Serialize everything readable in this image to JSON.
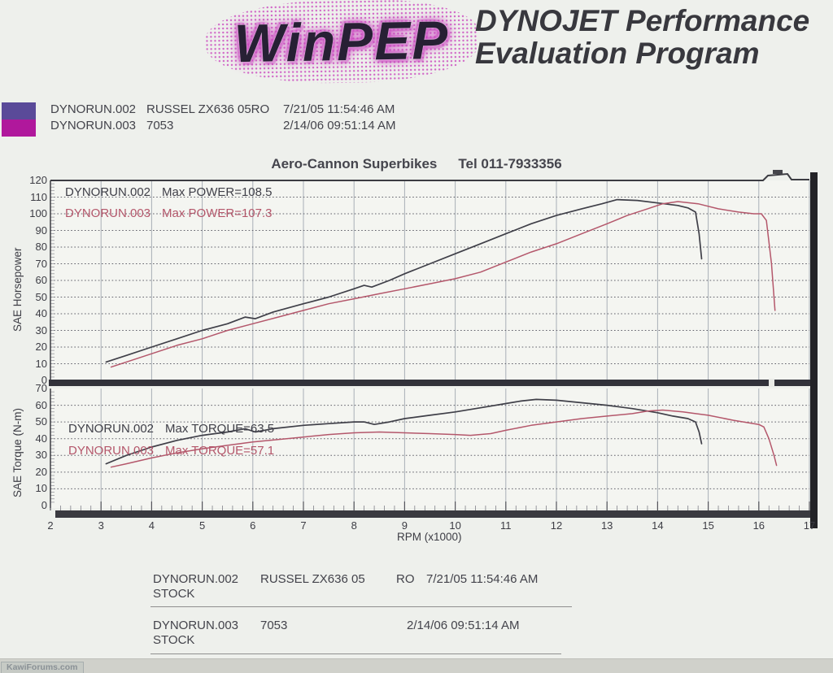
{
  "header": {
    "logo_text": "WinPEP",
    "product_line1": "DYNOJET Performance",
    "product_line2": "Evaluation Program"
  },
  "legend": {
    "runs": [
      {
        "file": "DYNORUN.002",
        "label": "RUSSEL ZX636 05RO",
        "datetime": "7/21/05 11:54:46 AM",
        "color": "#5a4a99"
      },
      {
        "file": "DYNORUN.003",
        "label": "7053",
        "datetime": "2/14/06 09:51:14 AM",
        "color": "#b0189c"
      }
    ]
  },
  "title": {
    "shop": "Aero-Cannon Superbikes",
    "tel": "Tel 011-7933356"
  },
  "chart_data": [
    {
      "type": "line",
      "title": "Aero-Cannon Superbikes  Tel 011-7933356",
      "ylabel": "SAE Horsepower",
      "xlabel": "RPM (x1000)",
      "xlim": [
        2,
        17
      ],
      "ylim": [
        0,
        120
      ],
      "xticks": [
        2,
        3,
        4,
        5,
        6,
        7,
        8,
        9,
        10,
        11,
        12,
        13,
        14,
        15,
        16,
        17
      ],
      "yticks": [
        0,
        10,
        20,
        30,
        40,
        50,
        60,
        70,
        80,
        90,
        100,
        110,
        120
      ],
      "grid": true,
      "legend_position": "none",
      "annotations": [
        {
          "run": "DYNORUN.002",
          "label": "Max POWER=108.5"
        },
        {
          "run": "DYNORUN.003",
          "label": "Max POWER=107.3"
        }
      ],
      "series": [
        {
          "name": "DYNORUN.002",
          "color": "#3f3f48",
          "max_power": 108.5,
          "points": [
            [
              3.1,
              11
            ],
            [
              3.5,
              15
            ],
            [
              4,
              20
            ],
            [
              4.5,
              25
            ],
            [
              5,
              30
            ],
            [
              5.5,
              34
            ],
            [
              5.85,
              38
            ],
            [
              6.05,
              37
            ],
            [
              6.4,
              41
            ],
            [
              7,
              46
            ],
            [
              7.5,
              50
            ],
            [
              8,
              55
            ],
            [
              8.2,
              57
            ],
            [
              8.35,
              56
            ],
            [
              8.7,
              60
            ],
            [
              9,
              64
            ],
            [
              9.5,
              70
            ],
            [
              10,
              76
            ],
            [
              10.5,
              82
            ],
            [
              11,
              88
            ],
            [
              11.5,
              94
            ],
            [
              12,
              99
            ],
            [
              12.5,
              103
            ],
            [
              12.9,
              106
            ],
            [
              13.2,
              108.5
            ],
            [
              13.6,
              108
            ],
            [
              14,
              106.5
            ],
            [
              14.4,
              105
            ],
            [
              14.6,
              103.5
            ],
            [
              14.75,
              101
            ],
            [
              14.82,
              88
            ],
            [
              14.87,
              73
            ]
          ]
        },
        {
          "name": "DYNORUN.003",
          "color": "#b4576b",
          "max_power": 107.3,
          "points": [
            [
              3.2,
              8
            ],
            [
              3.5,
              11
            ],
            [
              4,
              16
            ],
            [
              4.5,
              21
            ],
            [
              5,
              25
            ],
            [
              5.5,
              30
            ],
            [
              6,
              34
            ],
            [
              6.5,
              38
            ],
            [
              7,
              42
            ],
            [
              7.5,
              46
            ],
            [
              8,
              49
            ],
            [
              8.5,
              52
            ],
            [
              9,
              55
            ],
            [
              9.5,
              58
            ],
            [
              10,
              61
            ],
            [
              10.5,
              65
            ],
            [
              11,
              71
            ],
            [
              11.5,
              77
            ],
            [
              12,
              82
            ],
            [
              12.5,
              88
            ],
            [
              13,
              94
            ],
            [
              13.4,
              99
            ],
            [
              13.8,
              103
            ],
            [
              14.1,
              106
            ],
            [
              14.4,
              107.3
            ],
            [
              14.8,
              106
            ],
            [
              15.2,
              103
            ],
            [
              15.6,
              101
            ],
            [
              15.9,
              100
            ],
            [
              16.05,
              100
            ],
            [
              16.15,
              96
            ],
            [
              16.25,
              70
            ],
            [
              16.32,
              42
            ]
          ]
        }
      ]
    },
    {
      "type": "line",
      "ylabel": "SAE Torque (N-m)",
      "xlabel": "RPM (x1000)",
      "xlim": [
        2,
        17
      ],
      "ylim": [
        0,
        70
      ],
      "xticks": [
        2,
        3,
        4,
        5,
        6,
        7,
        8,
        9,
        10,
        11,
        12,
        13,
        14,
        15,
        16,
        17
      ],
      "yticks": [
        0,
        10,
        20,
        30,
        40,
        50,
        60,
        70
      ],
      "grid": true,
      "legend_position": "none",
      "annotations": [
        {
          "run": "DYNORUN.002",
          "label": "Max TORQUE=63.5"
        },
        {
          "run": "DYNORUN.003",
          "label": "Max TORQUE=57.1"
        }
      ],
      "series": [
        {
          "name": "DYNORUN.002",
          "color": "#3f3f48",
          "max_torque": 63.5,
          "points": [
            [
              3.1,
              25
            ],
            [
              3.5,
              30
            ],
            [
              4,
              35
            ],
            [
              4.5,
              39
            ],
            [
              5,
              42
            ],
            [
              5.5,
              44
            ],
            [
              5.85,
              46
            ],
            [
              6.05,
              44
            ],
            [
              6.4,
              46
            ],
            [
              7,
              48
            ],
            [
              7.5,
              49
            ],
            [
              8,
              50
            ],
            [
              8.2,
              50
            ],
            [
              8.4,
              48.5
            ],
            [
              8.7,
              50
            ],
            [
              9,
              52
            ],
            [
              9.5,
              54
            ],
            [
              10,
              56
            ],
            [
              10.5,
              58.5
            ],
            [
              11,
              61
            ],
            [
              11.3,
              62.5
            ],
            [
              11.6,
              63.5
            ],
            [
              12,
              63
            ],
            [
              12.5,
              61.5
            ],
            [
              13,
              60
            ],
            [
              13.5,
              58
            ],
            [
              14,
              55.5
            ],
            [
              14.3,
              53.5
            ],
            [
              14.6,
              52
            ],
            [
              14.75,
              50
            ],
            [
              14.82,
              44
            ],
            [
              14.87,
              37
            ]
          ]
        },
        {
          "name": "DYNORUN.003",
          "color": "#b4576b",
          "max_torque": 57.1,
          "points": [
            [
              3.2,
              23
            ],
            [
              3.5,
              25
            ],
            [
              4,
              28.5
            ],
            [
              4.5,
              31.5
            ],
            [
              5,
              34
            ],
            [
              5.5,
              36
            ],
            [
              6,
              38
            ],
            [
              6.5,
              39.5
            ],
            [
              7,
              41
            ],
            [
              7.5,
              42.5
            ],
            [
              8,
              43.5
            ],
            [
              8.5,
              44
            ],
            [
              9,
              43.5
            ],
            [
              9.5,
              43
            ],
            [
              10,
              42.5
            ],
            [
              10.3,
              42
            ],
            [
              10.7,
              43
            ],
            [
              11,
              45
            ],
            [
              11.5,
              48
            ],
            [
              12,
              50
            ],
            [
              12.5,
              52
            ],
            [
              13,
              53.5
            ],
            [
              13.5,
              55
            ],
            [
              13.8,
              56.5
            ],
            [
              14.1,
              57.1
            ],
            [
              14.5,
              56
            ],
            [
              15,
              54
            ],
            [
              15.5,
              51
            ],
            [
              16,
              48.5
            ],
            [
              16.1,
              47
            ],
            [
              16.2,
              40
            ],
            [
              16.3,
              30
            ],
            [
              16.35,
              24
            ]
          ]
        }
      ]
    }
  ],
  "footer": {
    "blocks": [
      {
        "file": "DYNORUN.002",
        "name": "RUSSEL ZX636 05",
        "note": "RO",
        "datetime": "7/21/05 11:54:46 AM",
        "line2": "STOCK"
      },
      {
        "file": "DYNORUN.003",
        "name": "7053",
        "note": "",
        "datetime": "2/14/06 09:51:14 AM",
        "line2": "STOCK"
      }
    ]
  },
  "watermark": "KawiForums.com"
}
